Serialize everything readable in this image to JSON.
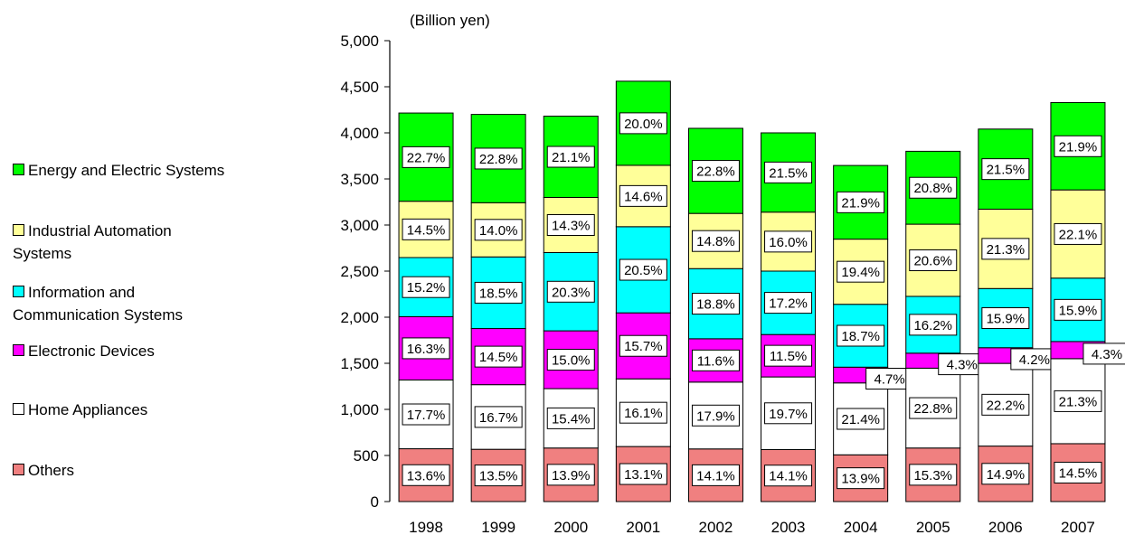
{
  "chart_data": {
    "type": "bar",
    "stacked": true,
    "unit_label": "(Billion yen)",
    "categories": [
      "1998",
      "1999",
      "2000",
      "2001",
      "2002",
      "2003",
      "2004",
      "2005",
      "2006",
      "2007"
    ],
    "ylim": [
      0,
      5000
    ],
    "yticks": [
      "0",
      "500",
      "1,000",
      "1,500",
      "2,000",
      "2,500",
      "3,000",
      "3,500",
      "4,000",
      "4,500",
      "5,000"
    ],
    "grid": false,
    "legend_position": "left",
    "series": [
      {
        "name": "Others",
        "color": "#F08080",
        "values": [
          573,
          567,
          581,
          597,
          571,
          564,
          507,
          581,
          602,
          628
        ],
        "labels": [
          "13.6%",
          "13.5%",
          "13.9%",
          "13.1%",
          "14.1%",
          "14.1%",
          "13.9%",
          "15.3%",
          "14.9%",
          "14.5%"
        ]
      },
      {
        "name": "Home Appliances",
        "color": "#FFFFFF",
        "values": [
          746,
          701,
          644,
          734,
          725,
          788,
          780,
          866,
          897,
          922
        ],
        "labels": [
          "17.7%",
          "16.7%",
          "15.4%",
          "16.1%",
          "17.9%",
          "19.7%",
          "21.4%",
          "22.8%",
          "22.2%",
          "21.3%"
        ]
      },
      {
        "name": "Electronic Devices",
        "color": "#FF00FF",
        "values": [
          687,
          609,
          627,
          716,
          470,
          460,
          171,
          163,
          170,
          186
        ],
        "labels": [
          "16.3%",
          "14.5%",
          "15.0%",
          "15.7%",
          "11.6%",
          "11.5%",
          "4.7%",
          "4.3%",
          "4.2%",
          "4.3%"
        ]
      },
      {
        "name": "Information and Communication Systems",
        "color": "#00FFFF",
        "values": [
          641,
          777,
          849,
          935,
          761,
          688,
          682,
          616,
          642,
          688
        ],
        "labels": [
          "15.2%",
          "18.5%",
          "20.3%",
          "20.5%",
          "18.8%",
          "17.2%",
          "18.7%",
          "16.2%",
          "15.9%",
          "15.9%"
        ]
      },
      {
        "name": "Industrial Automation Systems",
        "color": "#FFFF99",
        "values": [
          611,
          588,
          598,
          666,
          599,
          640,
          707,
          783,
          861,
          957
        ],
        "labels": [
          "14.5%",
          "14.0%",
          "14.3%",
          "14.6%",
          "14.8%",
          "16.0%",
          "19.4%",
          "20.6%",
          "21.3%",
          "22.1%"
        ]
      },
      {
        "name": "Energy and Electric Systems",
        "color": "#00FF00",
        "values": [
          957,
          958,
          882,
          912,
          923,
          860,
          799,
          791,
          869,
          948
        ],
        "labels": [
          "22.7%",
          "22.8%",
          "21.1%",
          "20.0%",
          "22.8%",
          "21.5%",
          "21.9%",
          "20.8%",
          "21.5%",
          "21.9%"
        ]
      }
    ]
  },
  "legend": {
    "items": [
      {
        "label": "Energy and Electric Systems",
        "color": "#00FF00"
      },
      {
        "label": "Industrial Automation\nSystems",
        "color": "#FFFF99"
      },
      {
        "label": "Information and\nCommunication Systems",
        "color": "#00FFFF"
      },
      {
        "label": "Electronic Devices",
        "color": "#FF00FF"
      },
      {
        "label": "Home Appliances",
        "color": "#FFFFFF"
      },
      {
        "label": "Others",
        "color": "#F08080"
      }
    ]
  }
}
